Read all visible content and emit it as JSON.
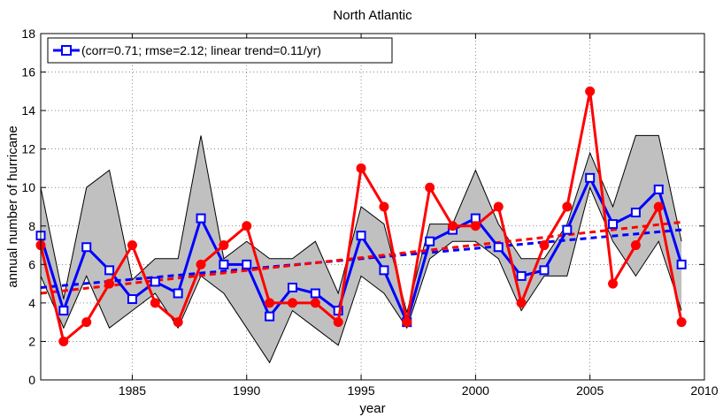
{
  "chart_data": {
    "type": "line",
    "title": "North Atlantic",
    "xlabel": "year",
    "ylabel": "annual number of hurricane",
    "xlim": [
      1981,
      2010
    ],
    "ylim": [
      0,
      18
    ],
    "xticks": [
      1985,
      1990,
      1995,
      2000,
      2005,
      2010
    ],
    "yticks": [
      0,
      2,
      4,
      6,
      8,
      10,
      12,
      14,
      16,
      18
    ],
    "grid": "dotted",
    "legend_location": "top-left",
    "legend_label": "(corr=0.71; rmse=2.12; linear trend=0.11/yr)",
    "x": [
      1981,
      1982,
      1983,
      1984,
      1985,
      1986,
      1987,
      1988,
      1989,
      1990,
      1991,
      1992,
      1993,
      1994,
      1995,
      1996,
      1997,
      1998,
      1999,
      2000,
      2001,
      2002,
      2003,
      2004,
      2005,
      2006,
      2007,
      2008,
      2009
    ],
    "band": {
      "color": "#c0c0c0",
      "upper": [
        10.0,
        4.2,
        10.0,
        10.9,
        5.2,
        6.3,
        6.3,
        12.7,
        6.3,
        7.2,
        6.3,
        6.3,
        7.2,
        4.5,
        9.0,
        8.1,
        3.5,
        8.1,
        8.1,
        10.9,
        8.1,
        6.3,
        6.3,
        8.1,
        11.8,
        9.0,
        12.7,
        12.7,
        7.2
      ],
      "lower": [
        5.4,
        2.7,
        5.4,
        2.7,
        3.6,
        4.5,
        2.7,
        5.4,
        4.5,
        2.7,
        0.9,
        3.6,
        2.7,
        1.8,
        5.4,
        4.5,
        2.7,
        6.3,
        7.2,
        7.2,
        6.3,
        3.6,
        5.4,
        5.4,
        10.0,
        7.2,
        5.4,
        7.2,
        3.6
      ]
    },
    "series": [
      {
        "color": "#0000ff",
        "marker": "square",
        "values": [
          7.5,
          3.6,
          6.9,
          5.7,
          4.2,
          5.1,
          4.5,
          8.4,
          6.0,
          6.0,
          3.3,
          4.8,
          4.5,
          3.6,
          7.5,
          5.7,
          3.0,
          7.2,
          7.8,
          8.4,
          6.9,
          5.4,
          5.7,
          7.8,
          10.5,
          8.1,
          8.7,
          9.9,
          6.0
        ],
        "trend": [
          4.8,
          7.8
        ]
      },
      {
        "color": "#ff0000",
        "marker": "circle",
        "values": [
          7,
          2,
          3,
          5,
          7,
          4,
          3,
          6,
          7,
          8,
          4,
          4,
          4,
          3,
          11,
          9,
          3,
          10,
          8,
          8,
          9,
          4,
          7,
          9,
          15,
          5,
          7,
          9,
          3
        ],
        "trend": [
          4.5,
          8.2
        ]
      }
    ]
  }
}
